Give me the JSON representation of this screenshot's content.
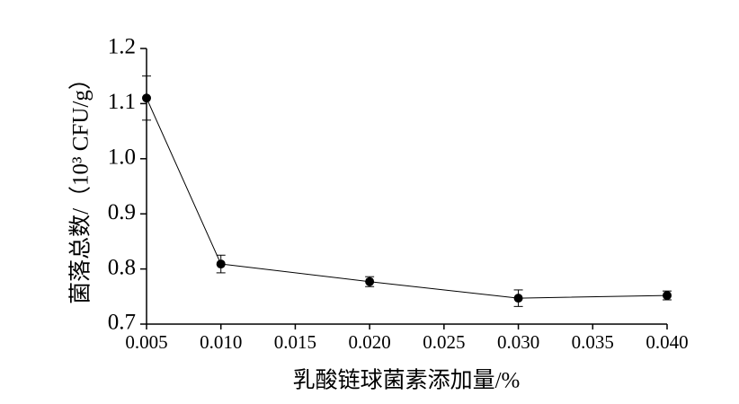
{
  "chart_data": {
    "type": "line",
    "x_label": "乳酸链球菌素添加量/%",
    "y_label": "菌落总数/（10³ CFU/g）",
    "x": [
      0.005,
      0.01,
      0.02,
      0.03,
      0.04
    ],
    "values": [
      1.11,
      0.809,
      0.777,
      0.747,
      0.752
    ],
    "errors": [
      0.04,
      0.016,
      0.009,
      0.015,
      0.008
    ],
    "color": "#000000",
    "xlim": [
      0.005,
      0.04
    ],
    "xticks": [
      0.005,
      {
        "value": 0.01,
        "label": "0.010"
      },
      0.015,
      {
        "value": 0.02,
        "label": "0.020"
      },
      0.025,
      {
        "value": 0.03,
        "label": "0.030"
      },
      0.035,
      {
        "value": 0.04,
        "label": "0.040"
      }
    ],
    "ylim": [
      0.7,
      1.2
    ],
    "yticks": [
      0.7,
      0.8,
      0.9,
      {
        "value": 1.0,
        "label": "1.0"
      },
      1.1,
      1.2
    ]
  }
}
